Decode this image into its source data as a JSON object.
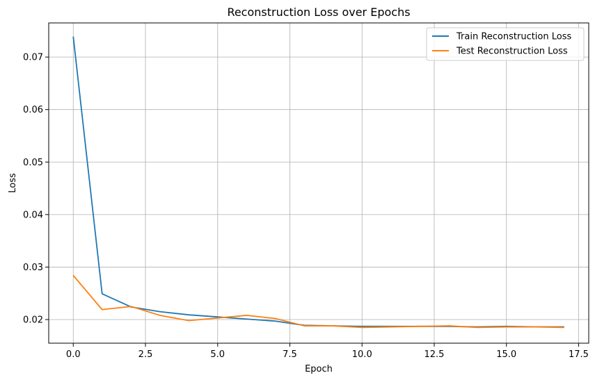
{
  "chart_data": {
    "type": "line",
    "title": "Reconstruction Loss over Epochs",
    "xlabel": "Epoch",
    "ylabel": "Loss",
    "xlim": [
      -0.85,
      17.85
    ],
    "ylim": [
      0.0155,
      0.0765
    ],
    "xticks": [
      0.0,
      2.5,
      5.0,
      7.5,
      10.0,
      12.5,
      15.0,
      17.5
    ],
    "xtick_labels": [
      "0.0",
      "2.5",
      "5.0",
      "7.5",
      "10.0",
      "12.5",
      "15.0",
      "17.5"
    ],
    "yticks": [
      0.02,
      0.03,
      0.04,
      0.05,
      0.06,
      0.07
    ],
    "ytick_labels": [
      "0.02",
      "0.03",
      "0.04",
      "0.05",
      "0.06",
      "0.07"
    ],
    "grid": true,
    "legend_position": "top-right",
    "x": [
      0,
      1,
      2,
      3,
      4,
      5,
      6,
      7,
      8,
      9,
      10,
      11,
      12,
      13,
      14,
      15,
      16,
      17
    ],
    "series": [
      {
        "name": "Train Reconstruction Loss",
        "color": "#1f77b4",
        "values": [
          0.0739,
          0.0249,
          0.0224,
          0.0215,
          0.0209,
          0.0205,
          0.0201,
          0.0197,
          0.0189,
          0.0188,
          0.0187,
          0.0187,
          0.0187,
          0.0187,
          0.0186,
          0.0187,
          0.0186,
          0.0186
        ]
      },
      {
        "name": "Test Reconstruction Loss",
        "color": "#ff7f0e",
        "values": [
          0.0284,
          0.0219,
          0.0225,
          0.0208,
          0.0198,
          0.0203,
          0.0208,
          0.0202,
          0.0188,
          0.0188,
          0.0185,
          0.0186,
          0.0187,
          0.0188,
          0.0185,
          0.0186,
          0.0186,
          0.0185
        ]
      }
    ]
  }
}
